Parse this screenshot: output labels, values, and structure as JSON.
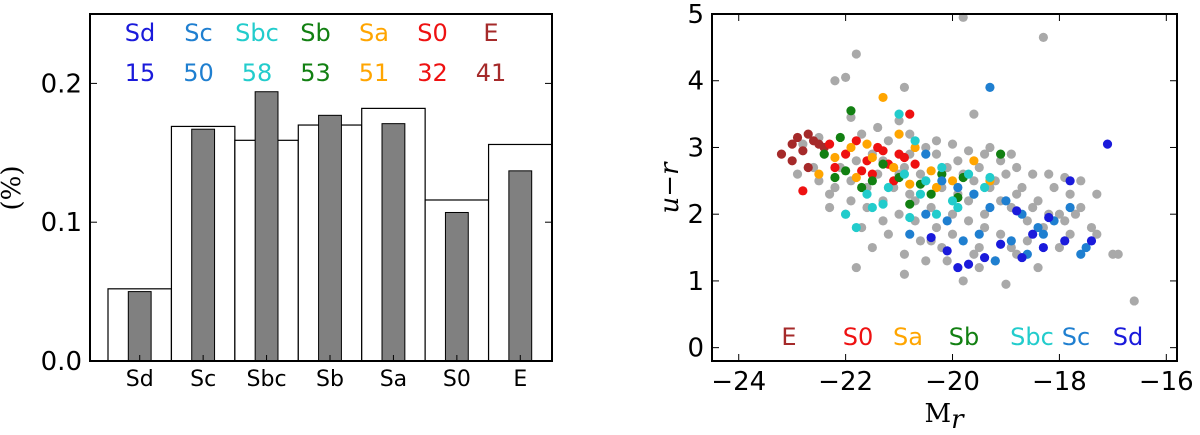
{
  "chart_data": [
    {
      "type": "bar",
      "categories": [
        "Sd",
        "Sc",
        "Sbc",
        "Sb",
        "Sa",
        "S0",
        "E"
      ],
      "series": [
        {
          "values": [
            0.052,
            0.169,
            0.159,
            0.17,
            0.182,
            0.116,
            0.156
          ],
          "style": "outline",
          "color": "#ffffff"
        },
        {
          "values": [
            0.05,
            0.167,
            0.194,
            0.177,
            0.171,
            0.107,
            0.137
          ],
          "style": "filled",
          "color": "#808080"
        }
      ],
      "ylabel": "(%)",
      "ylim": [
        0.0,
        0.25
      ],
      "yticks": [
        "0.0",
        "0.1",
        "0.2"
      ],
      "legend": {
        "labels": [
          "Sd",
          "Sc",
          "Sbc",
          "Sb",
          "Sa",
          "S0",
          "E"
        ],
        "counts": [
          "15",
          "50",
          "58",
          "53",
          "51",
          "32",
          "41"
        ],
        "colors": [
          "#1a1adb",
          "#1f7fd0",
          "#22cccc",
          "#128012",
          "#ffa500",
          "#ee1111",
          "#a52a2a"
        ]
      }
    },
    {
      "type": "scatter",
      "xlabel": "M",
      "xlabel_subscript": "r",
      "ylabel": "u−r",
      "xlim": [
        -24.5,
        -15.8
      ],
      "ylim": [
        -0.2,
        5.0
      ],
      "xticks": [
        "−24",
        "−22",
        "−20",
        "−18",
        "−16"
      ],
      "yticks": [
        "0",
        "1",
        "2",
        "3",
        "4",
        "5"
      ],
      "legend": {
        "labels": [
          "E",
          "S0",
          "Sa",
          "Sb",
          "Sbc",
          "Sc",
          "Sd"
        ],
        "colors": [
          "#a52a2a",
          "#ee1111",
          "#ffa500",
          "#128012",
          "#22cccc",
          "#1f7fd0",
          "#1a1adb"
        ]
      },
      "series": [
        {
          "name": "all",
          "color": "#a9a9a9",
          "points": [
            [
              -19.8,
              4.95
            ],
            [
              -18.3,
              4.65
            ],
            [
              -21.8,
              4.4
            ],
            [
              -22.2,
              4.0
            ],
            [
              -22.0,
              4.05
            ],
            [
              -20.9,
              3.9
            ],
            [
              -19.6,
              3.5
            ],
            [
              -21.0,
              3.4
            ],
            [
              -21.9,
              3.45
            ],
            [
              -22.5,
              3.15
            ],
            [
              -22.8,
              3.05
            ],
            [
              -22.6,
              2.7
            ],
            [
              -22.9,
              2.6
            ],
            [
              -22.4,
              2.9
            ],
            [
              -21.7,
              3.2
            ],
            [
              -21.4,
              3.3
            ],
            [
              -21.2,
              3.1
            ],
            [
              -20.8,
              3.2
            ],
            [
              -20.3,
              3.1
            ],
            [
              -20.0,
              3.05
            ],
            [
              -19.7,
              2.95
            ],
            [
              -19.4,
              2.9
            ],
            [
              -19.1,
              2.8
            ],
            [
              -18.8,
              2.7
            ],
            [
              -18.5,
              2.6
            ],
            [
              -18.2,
              2.6
            ],
            [
              -17.9,
              2.55
            ],
            [
              -17.6,
              2.5
            ],
            [
              -17.3,
              2.3
            ],
            [
              -17.0,
              1.4
            ],
            [
              -16.6,
              0.7
            ],
            [
              -16.9,
              1.4
            ],
            [
              -17.3,
              1.7
            ],
            [
              -17.6,
              2.1
            ],
            [
              -17.8,
              2.3
            ],
            [
              -18.0,
              2.0
            ],
            [
              -18.3,
              1.8
            ],
            [
              -18.6,
              1.6
            ],
            [
              -18.9,
              1.5
            ],
            [
              -19.2,
              1.3
            ],
            [
              -19.5,
              1.2
            ],
            [
              -19.8,
              1.0
            ],
            [
              -20.1,
              1.3
            ],
            [
              -20.4,
              1.6
            ],
            [
              -20.7,
              1.9
            ],
            [
              -21.0,
              2.0
            ],
            [
              -21.3,
              1.9
            ],
            [
              -21.6,
              2.1
            ],
            [
              -21.9,
              2.2
            ],
            [
              -22.2,
              2.4
            ],
            [
              -22.5,
              2.5
            ],
            [
              -21.8,
              1.2
            ],
            [
              -21.5,
              1.5
            ],
            [
              -21.2,
              1.7
            ],
            [
              -20.9,
              1.1
            ],
            [
              -20.6,
              1.6
            ],
            [
              -20.3,
              1.8
            ],
            [
              -20.0,
              1.7
            ],
            [
              -19.7,
              1.9
            ],
            [
              -19.4,
              2.0
            ],
            [
              -19.1,
              2.2
            ],
            [
              -18.8,
              2.3
            ],
            [
              -18.5,
              2.1
            ],
            [
              -18.2,
              2.0
            ],
            [
              -17.9,
              1.9
            ],
            [
              -21.4,
              2.6
            ],
            [
              -21.1,
              2.4
            ],
            [
              -20.8,
              2.3
            ],
            [
              -20.5,
              2.5
            ],
            [
              -20.2,
              2.4
            ],
            [
              -19.9,
              2.3
            ],
            [
              -19.6,
              2.5
            ],
            [
              -19.3,
              2.4
            ],
            [
              -19.0,
              2.6
            ],
            [
              -18.7,
              2.4
            ],
            [
              -18.4,
              2.2
            ],
            [
              -22.1,
              2.7
            ],
            [
              -21.8,
              2.8
            ],
            [
              -21.5,
              2.9
            ],
            [
              -20.9,
              2.7
            ],
            [
              -20.6,
              2.6
            ],
            [
              -20.1,
              2.7
            ],
            [
              -19.8,
              2.6
            ],
            [
              -19.5,
              2.7
            ],
            [
              -19.2,
              2.5
            ],
            [
              -18.9,
              2.1
            ],
            [
              -18.6,
              1.9
            ],
            [
              -21.0,
              2.6
            ],
            [
              -20.7,
              2.2
            ],
            [
              -20.4,
              2.1
            ],
            [
              -20.0,
              2.0
            ],
            [
              -19.7,
              2.2
            ],
            [
              -19.4,
              1.8
            ],
            [
              -19.1,
              1.7
            ],
            [
              -18.8,
              1.4
            ],
            [
              -19.5,
              1.5
            ],
            [
              -20.2,
              1.5
            ],
            [
              -19.0,
              0.95
            ],
            [
              -18.4,
              1.2
            ],
            [
              -17.7,
              2.0
            ],
            [
              -17.4,
              1.8
            ],
            [
              -22.3,
              2.3
            ],
            [
              -21.9,
              2.5
            ],
            [
              -21.6,
              2.4
            ],
            [
              -21.3,
              2.2
            ],
            [
              -20.8,
              2.9
            ],
            [
              -20.5,
              3.0
            ],
            [
              -20.3,
              2.9
            ],
            [
              -19.9,
              2.8
            ],
            [
              -19.3,
              3.0
            ],
            [
              -18.9,
              2.9
            ],
            [
              -18.1,
              2.4
            ],
            [
              -17.8,
              1.7
            ],
            [
              -18.0,
              1.5
            ],
            [
              -21.7,
              1.8
            ],
            [
              -22.0,
              2.0
            ],
            [
              -22.3,
              2.1
            ],
            [
              -19.6,
              1.4
            ],
            [
              -20.9,
              1.4
            ],
            [
              -20.5,
              1.3
            ],
            [
              -21.3,
              2.8
            ]
          ]
        },
        {
          "name": "E",
          "color": "#a52a2a",
          "points": [
            [
              -23.2,
              2.9
            ],
            [
              -23.0,
              3.05
            ],
            [
              -22.9,
              3.15
            ],
            [
              -22.7,
              3.2
            ],
            [
              -22.8,
              2.95
            ],
            [
              -22.6,
              3.1
            ],
            [
              -22.5,
              3.05
            ],
            [
              -23.0,
              2.8
            ],
            [
              -22.4,
              3.0
            ],
            [
              -22.7,
              2.7
            ]
          ]
        },
        {
          "name": "S0",
          "color": "#ee1111",
          "points": [
            [
              -22.8,
              2.35
            ],
            [
              -22.2,
              2.7
            ],
            [
              -22.0,
              2.9
            ],
            [
              -21.8,
              3.1
            ],
            [
              -21.6,
              2.8
            ],
            [
              -21.4,
              3.0
            ],
            [
              -21.2,
              2.75
            ],
            [
              -21.0,
              2.9
            ],
            [
              -20.8,
              3.5
            ],
            [
              -21.3,
              2.95
            ],
            [
              -21.5,
              2.6
            ],
            [
              -21.1,
              2.5
            ],
            [
              -20.9,
              2.85
            ],
            [
              -22.3,
              3.05
            ],
            [
              -21.7,
              2.65
            ],
            [
              -20.7,
              2.75
            ]
          ]
        },
        {
          "name": "Sa",
          "color": "#ffa500",
          "points": [
            [
              -21.3,
              3.75
            ],
            [
              -21.9,
              3.0
            ],
            [
              -22.2,
              2.85
            ],
            [
              -21.0,
              3.2
            ],
            [
              -20.7,
              3.0
            ],
            [
              -21.8,
              2.55
            ],
            [
              -21.5,
              2.85
            ],
            [
              -20.4,
              2.65
            ],
            [
              -20.0,
              2.5
            ],
            [
              -19.6,
              2.8
            ],
            [
              -21.1,
              2.7
            ],
            [
              -20.8,
              2.45
            ],
            [
              -21.6,
              3.05
            ],
            [
              -22.5,
              2.6
            ],
            [
              -20.3,
              2.4
            ],
            [
              -19.3,
              2.5
            ]
          ]
        },
        {
          "name": "Sb",
          "color": "#128012",
          "points": [
            [
              -21.9,
              3.55
            ],
            [
              -22.1,
              3.15
            ],
            [
              -22.4,
              2.9
            ],
            [
              -22.2,
              2.55
            ],
            [
              -21.7,
              2.4
            ],
            [
              -21.3,
              2.75
            ],
            [
              -21.0,
              2.55
            ],
            [
              -20.6,
              2.45
            ],
            [
              -20.2,
              2.6
            ],
            [
              -19.8,
              2.55
            ],
            [
              -19.1,
              2.9
            ],
            [
              -20.4,
              2.3
            ],
            [
              -21.5,
              2.5
            ],
            [
              -22.0,
              2.65
            ],
            [
              -20.8,
              2.15
            ],
            [
              -19.9,
              2.25
            ]
          ]
        },
        {
          "name": "Sbc",
          "color": "#22cccc",
          "points": [
            [
              -21.8,
              1.8
            ],
            [
              -21.5,
              2.1
            ],
            [
              -21.2,
              2.4
            ],
            [
              -20.9,
              2.6
            ],
            [
              -20.6,
              2.3
            ],
            [
              -20.3,
              2.0
            ],
            [
              -20.0,
              2.2
            ],
            [
              -19.7,
              2.6
            ],
            [
              -19.4,
              2.4
            ],
            [
              -21.0,
              3.5
            ],
            [
              -20.7,
              3.1
            ],
            [
              -21.6,
              2.3
            ],
            [
              -22.0,
              2.0
            ],
            [
              -20.5,
              2.5
            ],
            [
              -20.2,
              2.7
            ],
            [
              -19.9,
              2.1
            ],
            [
              -19.6,
              2.3
            ],
            [
              -19.3,
              2.55
            ],
            [
              -21.3,
              2.15
            ],
            [
              -20.8,
              1.95
            ]
          ]
        },
        {
          "name": "Sc",
          "color": "#1f7fd0",
          "points": [
            [
              -19.3,
              3.9
            ],
            [
              -20.5,
              2.9
            ],
            [
              -20.2,
              2.5
            ],
            [
              -19.9,
              2.4
            ],
            [
              -19.6,
              2.3
            ],
            [
              -19.3,
              2.1
            ],
            [
              -19.0,
              2.2
            ],
            [
              -18.7,
              2.0
            ],
            [
              -18.4,
              1.8
            ],
            [
              -18.1,
              1.9
            ],
            [
              -17.8,
              2.1
            ],
            [
              -17.5,
              1.5
            ],
            [
              -19.5,
              1.7
            ],
            [
              -19.8,
              1.6
            ],
            [
              -20.1,
              1.9
            ],
            [
              -19.2,
              1.3
            ],
            [
              -18.9,
              1.6
            ],
            [
              -18.6,
              1.4
            ],
            [
              -18.3,
              1.7
            ],
            [
              -20.5,
              2.0
            ],
            [
              -20.8,
              1.7
            ],
            [
              -17.6,
              1.4
            ]
          ]
        },
        {
          "name": "Sd",
          "color": "#1a1adb",
          "points": [
            [
              -17.1,
              3.05
            ],
            [
              -17.8,
              2.5
            ],
            [
              -18.2,
              1.95
            ],
            [
              -18.5,
              1.7
            ],
            [
              -18.8,
              2.05
            ],
            [
              -19.1,
              1.55
            ],
            [
              -19.4,
              1.35
            ],
            [
              -19.7,
              1.25
            ],
            [
              -20.1,
              1.45
            ],
            [
              -20.4,
              1.65
            ],
            [
              -18.7,
              1.35
            ],
            [
              -17.9,
              1.6
            ],
            [
              -19.9,
              1.2
            ],
            [
              -18.3,
              1.5
            ],
            [
              -17.4,
              1.6
            ]
          ]
        }
      ]
    }
  ]
}
